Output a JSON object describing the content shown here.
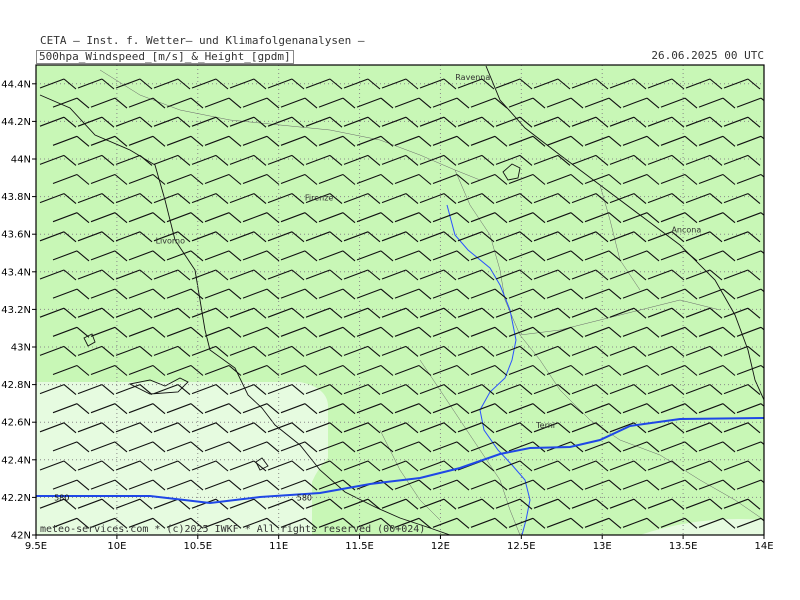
{
  "header": {
    "line1": "CETA – Inst. f. Wetter– und Klimafolgenanalysen –",
    "line2": "500hpa_Windspeed_[m/s]_&_Height_[gpdm]",
    "date": "26.06.2025 00 UTC"
  },
  "footer": {
    "copyright": "meteo-services.com * (c)2025 IWKF * All rights reserved (00+024)"
  },
  "axes": {
    "x_ticks": [
      "9.5E",
      "10E",
      "10.5E",
      "11E",
      "11.5E",
      "12E",
      "12.5E",
      "13E",
      "13.5E",
      "14E"
    ],
    "y_ticks": [
      "42N",
      "42.2N",
      "42.4N",
      "42.6N",
      "42.8N",
      "43N",
      "43.2N",
      "43.4N",
      "43.6N",
      "43.8N",
      "44N",
      "44.2N",
      "44.4N"
    ]
  },
  "cities": [
    {
      "name": "Ravenna",
      "lon": 12.2,
      "lat": 44.42
    },
    {
      "name": "Firenze",
      "lon": 11.25,
      "lat": 43.78
    },
    {
      "name": "Livorno",
      "lon": 10.33,
      "lat": 43.55
    },
    {
      "name": "Ancona",
      "lon": 13.52,
      "lat": 43.61
    },
    {
      "name": "Terni",
      "lon": 12.65,
      "lat": 42.57
    }
  ],
  "contours": [
    {
      "label": "580",
      "label_positions": [
        {
          "lon": 9.55,
          "lat": 42.2
        },
        {
          "lon": 11.05,
          "lat": 42.2
        }
      ]
    }
  ],
  "colors": {
    "light_wind": "#e6fbe0",
    "medium_wind": "#c8f7b6",
    "contour": "#1f47e6",
    "river": "#2a52ff"
  },
  "chart_data": {
    "type": "map",
    "title": "500hpa_Windspeed_[m/s]_&_Height_[gpdm]",
    "valid_time": "26.06.2025 00 UTC",
    "xlim": [
      9.5,
      14.0
    ],
    "ylim": [
      42.0,
      44.5
    ],
    "grid": true,
    "wind_barbs": "westerly, full barbs over whole domain",
    "height_contour_gpdm": 580
  }
}
